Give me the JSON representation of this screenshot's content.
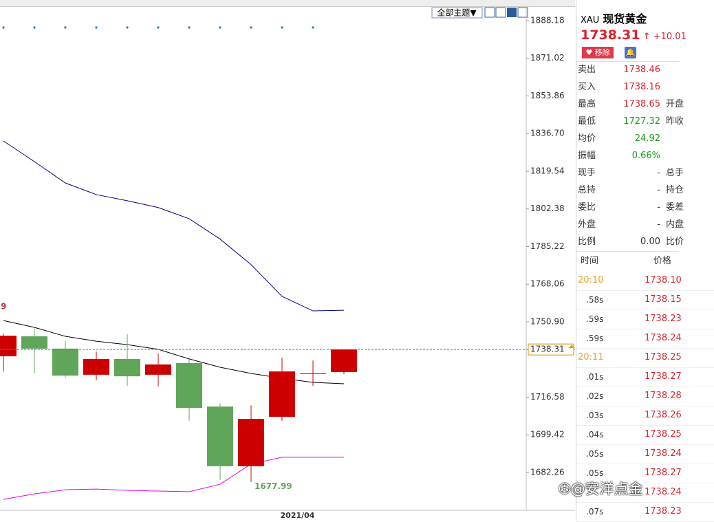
{
  "toolbar": {
    "theme_button": "全部主题▼"
  },
  "chart_data": {
    "type": "candlestick",
    "ylim": [
      1665.02,
      1897.58
    ],
    "yticks": [
      1888.18,
      1871.02,
      1853.86,
      {
        "value": 1836.7,
        "label": "1836.70"
      },
      1819.54,
      1802.38,
      1785.22,
      1768.06,
      {
        "value": 1750.9,
        "label": "1750.90"
      },
      1716.58,
      1699.42,
      1682.26
    ],
    "open": [
      1735.2,
      1744.3,
      1738.7,
      1726.8,
      1734.0,
      1726.8,
      1732.1,
      1712.3,
      1685.1,
      1707.6,
      1727.4,
      1728.0
    ],
    "high": [
      1745.6,
      1747.5,
      1742.1,
      1737.4,
      1745.3,
      1736.5,
      1734.6,
      1713.9,
      1712.9,
      1734.6,
      1733.3,
      1737.7
    ],
    "low": [
      1728.3,
      1727.4,
      1725.5,
      1724.3,
      1721.8,
      1721.4,
      1705.8,
      1678.8,
      1677.99,
      1705.8,
      1721.8,
      1727.0
    ],
    "close": [
      1744.6,
      1738.7,
      1726.4,
      1734.0,
      1726.1,
      1731.5,
      1711.7,
      1685.1,
      1706.7,
      1728.3,
      1727.4,
      1738.31
    ],
    "up_color": "#cc0000",
    "down_color": "#5fa55a",
    "lines": [
      {
        "color": "#00007f",
        "values": [
          1833.33,
          1823.93,
          1814.2,
          1808.9,
          1806.1,
          1803.0,
          1797.9,
          1788.6,
          1777.0,
          1762.5,
          1755.9,
          1756.2
        ]
      },
      {
        "color": "#000000",
        "values": [
          1751.5,
          1748.4,
          1744.3,
          1742.1,
          1740.5,
          1738.4,
          1734.0,
          1730.2,
          1727.4,
          1725.2,
          1723.3,
          1722.7
        ]
      },
      {
        "color": "#e000e0",
        "values": [
          1670.0,
          1672.5,
          1674.4,
          1674.7,
          1674.1,
          1673.8,
          1673.5,
          1676.9,
          1686.1,
          1689.2,
          1689.2,
          1689.2
        ]
      }
    ],
    "annotation": "9",
    "x_label": "2021/04"
  },
  "panel": {
    "symbol": "XAU",
    "name": "现货黄金",
    "price": "1738.31",
    "arrow": "↑",
    "change": "+10.01",
    "remove": "移除",
    "quotes": [
      {
        "label": "卖出",
        "value": "1738.46",
        "color": "#d9232e"
      },
      {
        "label": "买入",
        "value": "1738.16",
        "color": "#d9232e"
      },
      {
        "label": "最高",
        "value": "1738.65",
        "color": "#d9232e",
        "label2": "开盘"
      },
      {
        "label": "最低",
        "value": "1727.32",
        "color": "#1a9a1a",
        "label2": "昨收"
      },
      {
        "label": "均价",
        "value": "24.92",
        "color": "#1a9a1a"
      },
      {
        "label": "振幅",
        "value": "0.66%",
        "color": "#1a9a1a"
      },
      {
        "label": "现手",
        "value": "-",
        "color": "#333333",
        "label2": "总手"
      },
      {
        "label": "总持",
        "value": "-",
        "color": "#333333",
        "label2": "持仓"
      },
      {
        "label": "委比",
        "value": "-",
        "color": "#333333",
        "label2": "委差"
      },
      {
        "label": "外盘",
        "value": "-",
        "color": "#333333",
        "label2": "内盘"
      },
      {
        "label": "比例",
        "value": "0.00",
        "color": "#333333",
        "label2": "比价"
      }
    ],
    "trade_header": [
      "时间",
      "价格"
    ],
    "trades": [
      {
        "time": "20:10",
        "price": "1738.10"
      },
      {
        "time": ".58s",
        "price": "1738.15"
      },
      {
        "time": ".59s",
        "price": "1738.23"
      },
      {
        "time": ".59s",
        "price": "1738.24"
      },
      {
        "time": "20:11",
        "price": "1738.25"
      },
      {
        "time": ".01s",
        "price": "1738.27"
      },
      {
        "time": ".02s",
        "price": "1738.28"
      },
      {
        "time": ".03s",
        "price": "1738.26"
      },
      {
        "time": ".04s",
        "price": "1738.25"
      },
      {
        "time": ".05s",
        "price": "1738.24"
      },
      {
        "time": ".05s",
        "price": "1738.27"
      },
      {
        "time": null,
        "price": "1738.24"
      },
      {
        "time": ".07s",
        "price": "1738.23"
      }
    ]
  },
  "watermark": "@安洋点金"
}
